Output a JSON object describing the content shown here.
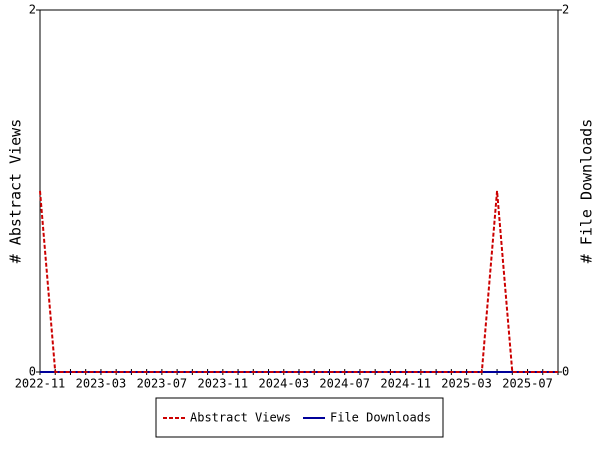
{
  "chart_data": {
    "type": "line",
    "categories": [
      "2022-11",
      null,
      null,
      null,
      "2023-03",
      null,
      null,
      null,
      "2023-07",
      null,
      null,
      null,
      "2023-11",
      null,
      null,
      null,
      "2024-03",
      null,
      null,
      null,
      "2024-07",
      null,
      null,
      null,
      "2024-11",
      null,
      null,
      null,
      "2025-03",
      null,
      null,
      null,
      "2025-07",
      null,
      null
    ],
    "ylabel": "# Abstract Views",
    "y2label": "# File Downloads",
    "ylim": [
      0,
      2
    ],
    "yticks": [
      0,
      2
    ],
    "y2lim": [
      0,
      2
    ],
    "y2ticks": [
      0,
      2
    ],
    "series": [
      {
        "name": "Abstract Views",
        "color": "#cc0000",
        "dashed": true,
        "values": [
          1,
          0,
          0,
          0,
          0,
          0,
          0,
          0,
          0,
          0,
          0,
          0,
          0,
          0,
          0,
          0,
          0,
          0,
          0,
          0,
          0,
          0,
          0,
          0,
          0,
          0,
          0,
          0,
          0,
          0,
          1,
          0,
          0,
          0,
          0
        ]
      },
      {
        "name": "File Downloads",
        "color": "#000099",
        "dashed": false,
        "axis": "y2",
        "values": [
          0,
          0,
          0,
          0,
          0,
          0,
          0,
          0,
          0,
          0,
          0,
          0,
          0,
          0,
          0,
          0,
          0,
          0,
          0,
          0,
          0,
          0,
          0,
          0,
          0,
          0,
          0,
          0,
          0,
          0,
          0,
          0,
          0,
          0,
          0
        ]
      }
    ],
    "legend": "bottom"
  }
}
